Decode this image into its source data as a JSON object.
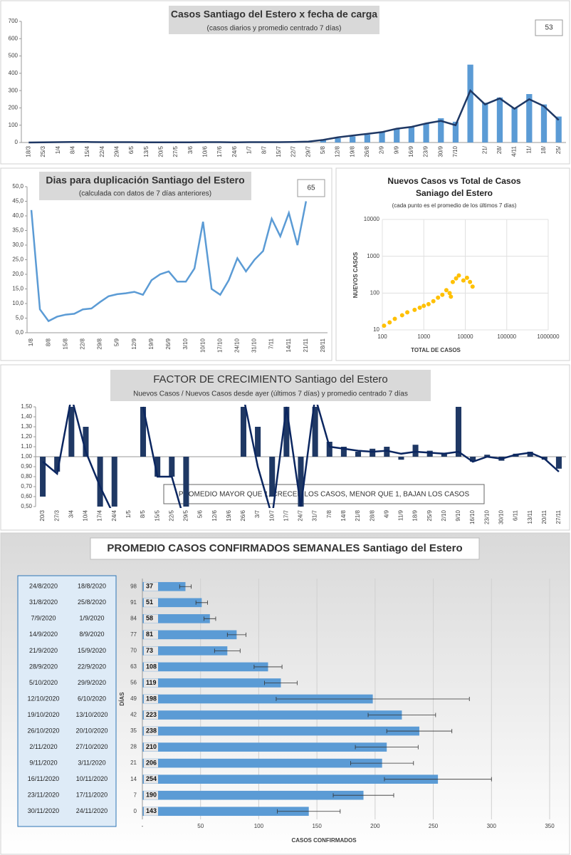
{
  "chart_data": [
    {
      "type": "bar-line",
      "title": "Casos Santiago del Estero x fecha de carga",
      "subtitle": "(casos diarios y promedio centrado 7 días)",
      "annotation": "53",
      "categories": [
        "18/3",
        "25/3",
        "1/4",
        "8/4",
        "15/4",
        "22/4",
        "29/4",
        "6/5",
        "13/5",
        "20/5",
        "27/5",
        "3/6",
        "10/6",
        "17/6",
        "24/6",
        "1/7",
        "8/7",
        "15/7",
        "22/7",
        "29/7",
        "5/8",
        "12/8",
        "19/8",
        "26/8",
        "2/9",
        "9/9",
        "16/9",
        "23/9",
        "30/9",
        "7/10",
        null,
        "21/",
        "28/",
        "4/11",
        "11/",
        "18/",
        "25/"
      ],
      "series": [
        {
          "name": "casos diarios",
          "color": "#5b9bd5",
          "values": [
            0,
            2,
            3,
            5,
            3,
            2,
            3,
            2,
            1,
            1,
            1,
            1,
            2,
            2,
            1,
            3,
            2,
            2,
            3,
            5,
            15,
            25,
            35,
            45,
            60,
            80,
            90,
            110,
            140,
            120,
            450,
            230,
            260,
            200,
            280,
            220,
            150
          ]
        },
        {
          "name": "promedio centrado 7 días",
          "color": "#1f3864",
          "values": [
            0,
            1,
            2,
            3,
            3,
            2,
            2,
            2,
            1,
            1,
            1,
            1,
            2,
            2,
            1,
            2,
            2,
            2,
            3,
            5,
            15,
            30,
            40,
            50,
            60,
            80,
            90,
            110,
            125,
            100,
            300,
            220,
            255,
            195,
            250,
            210,
            130
          ]
        }
      ],
      "ylim": [
        0,
        700
      ],
      "yticks": [
        0,
        100,
        200,
        300,
        400,
        500,
        600,
        700
      ]
    },
    {
      "type": "line",
      "title": "Dias para duplicación Santiago del Estero",
      "subtitle": "(calculada con datos de 7 días anteriores)",
      "annotation": "65",
      "color": "#5b9bd5",
      "categories": [
        "1/8",
        null,
        "8/8",
        null,
        "15/8",
        null,
        "22/8",
        null,
        "29/8",
        null,
        "5/9",
        null,
        "12/9",
        null,
        "19/9",
        null,
        "26/9",
        null,
        "3/10",
        null,
        "10/10",
        null,
        "17/10",
        null,
        "24/10",
        null,
        "31/10",
        null,
        "7/11",
        null,
        "14/11",
        null,
        "21/11",
        null,
        "28/11"
      ],
      "values": [
        42,
        8,
        4,
        5.5,
        6.2,
        6.5,
        8,
        8.3,
        10.5,
        12.5,
        13.2,
        13.5,
        14,
        13,
        18,
        20,
        21,
        17.5,
        17.5,
        22,
        38,
        15,
        13,
        18,
        25.5,
        21,
        25,
        28,
        39,
        33,
        41,
        30,
        45,
        null,
        null
      ],
      "ylim": [
        0,
        50
      ],
      "yticks": [
        {
          "value": 0,
          "label": "0,0"
        },
        {
          "value": 5,
          "label": "5,0"
        },
        {
          "value": 10,
          "label": "10,0"
        },
        {
          "value": 15,
          "label": "15,0"
        },
        {
          "value": 20,
          "label": "20,0"
        },
        {
          "value": 25,
          "label": "25,0"
        },
        {
          "value": 30,
          "label": "30,0"
        },
        {
          "value": 35,
          "label": "35,0"
        },
        {
          "value": 40,
          "label": "40,0"
        },
        {
          "value": 45,
          "label": "45,0"
        },
        {
          "value": 50,
          "label": "50,0"
        }
      ]
    },
    {
      "type": "scatter",
      "title": "Nuevos Casos vs Total de Casos Saniago del Estero",
      "subtitle": "(cada punto es el promedio de los últimos 7 días)",
      "xlabel": "TOTAL DE CASOS",
      "ylabel": "NUEVOS CASOS",
      "color": "#ffc000",
      "log_scale": true,
      "x": [
        110,
        150,
        200,
        300,
        400,
        600,
        800,
        1000,
        1300,
        1700,
        2200,
        2800,
        3500,
        4200,
        4500,
        5000,
        6000,
        7000,
        9000,
        11000,
        13000,
        15000
      ],
      "y": [
        13,
        16,
        20,
        25,
        30,
        35,
        40,
        45,
        50,
        60,
        75,
        90,
        120,
        100,
        80,
        200,
        250,
        300,
        220,
        260,
        200,
        150
      ],
      "xlim": [
        100,
        1000000
      ],
      "xticks": [
        100,
        1000,
        10000,
        100000,
        1000000
      ],
      "ylim": [
        10,
        10000
      ],
      "yticks": [
        10,
        100,
        1000,
        10000
      ]
    },
    {
      "type": "bar-line",
      "title": "FACTOR DE CRECIMIENTO Santiago del Estero",
      "subtitle": "Nuevos Casos  / Nuevos Casos desde ayer (últimos 7 días) y promedio  centrado 7 días",
      "annotation": "PROMEDIO MAYOR QUE 1, CRECEN LOS CASOS, MENOR QUE 1, BAJAN LOS CASOS",
      "baseline": 1,
      "categories": [
        "20/3",
        "27/3",
        "3/4",
        "10/4",
        "17/4",
        "24/4",
        "1/5",
        "8/5",
        "15/5",
        "22/5",
        "29/5",
        "5/6",
        "12/6",
        "19/6",
        "26/6",
        "3/7",
        "10/7",
        "17/7",
        "24/7",
        "31/7",
        "7/8",
        "14/8",
        "21/8",
        "28/8",
        "4/9",
        "11/9",
        "18/9",
        "25/9",
        "2/10",
        "9/10",
        "16/10",
        "23/10",
        "30/10",
        "6/11",
        "13/11",
        "20/11",
        "27/11"
      ],
      "series": [
        {
          "name": "factor diario",
          "color": "#1f3864",
          "values": [
            0.6,
            0.85,
            1.5,
            1.3,
            0.5,
            0.5,
            null,
            1.5,
            0.8,
            0.8,
            0.5,
            null,
            null,
            null,
            1.5,
            1.3,
            0.6,
            1.5,
            0.5,
            1.5,
            1.15,
            1.1,
            1.05,
            1.08,
            1.1,
            0.97,
            1.12,
            1.06,
            1.04,
            1.5,
            0.95,
            1.02,
            0.96,
            1.03,
            1.05,
            0.97,
            0.88
          ]
        },
        {
          "name": "promedio centrado 7 días",
          "color": "#0b2660",
          "values": [
            0.95,
            0.83,
            1.6,
            1.05,
            0.7,
            0.4,
            null,
            1.5,
            0.8,
            0.8,
            0.3,
            null,
            null,
            null,
            1.6,
            0.9,
            0.4,
            1.5,
            0.5,
            1.6,
            1.1,
            1.08,
            1.06,
            1.05,
            1.06,
            1.03,
            1.05,
            1.04,
            1.03,
            1.05,
            0.95,
            1.0,
            0.98,
            1.02,
            1.04,
            0.98,
            0.85
          ]
        }
      ],
      "ylim": [
        0.5,
        1.5
      ],
      "yticks": [
        {
          "value": 0.5,
          "label": "0,50"
        },
        {
          "value": 0.6,
          "label": "0,60"
        },
        {
          "value": 0.7,
          "label": "0,70"
        },
        {
          "value": 0.8,
          "label": "0,80"
        },
        {
          "value": 0.9,
          "label": "0,90"
        },
        {
          "value": 1,
          "label": "1,00"
        },
        {
          "value": 1.1,
          "label": "1,10"
        },
        {
          "value": 1.2,
          "label": "1,20"
        },
        {
          "value": 1.3,
          "label": "1,30"
        },
        {
          "value": 1.4,
          "label": "1,40"
        },
        {
          "value": 1.5,
          "label": "1,50"
        }
      ]
    },
    {
      "type": "hbar",
      "title": "PROMEDIO CASOS CONFIRMADOS SEMANALES Santiago del Estero",
      "xlabel": "CASOS CONFIRMADOS",
      "ylabel": "DÍAS",
      "color": "#5b9bd5",
      "dates": [
        [
          "24/8/2020",
          "18/8/2020"
        ],
        [
          "31/8/2020",
          "25/8/2020"
        ],
        [
          "7/9/2020",
          "1/9/2020"
        ],
        [
          "14/9/2020",
          "8/9/2020"
        ],
        [
          "21/9/2020",
          "15/9/2020"
        ],
        [
          "28/9/2020",
          "22/9/2020"
        ],
        [
          "5/10/2020",
          "29/9/2020"
        ],
        [
          "12/10/2020",
          "6/10/2020"
        ],
        [
          "19/10/2020",
          "13/10/2020"
        ],
        [
          "26/10/2020",
          "20/10/2020"
        ],
        [
          "2/11/2020",
          "27/10/2020"
        ],
        [
          "9/11/2020",
          "3/11/2020"
        ],
        [
          "16/11/2020",
          "10/11/2020"
        ],
        [
          "23/11/2020",
          "17/11/2020"
        ],
        [
          "30/11/2020",
          "24/11/2020"
        ]
      ],
      "categories": [
        98,
        91,
        84,
        77,
        70,
        63,
        56,
        49,
        42,
        35,
        28,
        21,
        14,
        7,
        0
      ],
      "values": [
        37,
        51,
        58,
        81,
        73,
        108,
        119,
        198,
        223,
        238,
        210,
        206,
        254,
        190,
        143
      ],
      "errors": [
        5,
        5,
        5,
        8,
        11,
        12,
        14,
        83,
        29,
        28,
        27,
        27,
        46,
        26,
        27
      ],
      "xlim": [
        0,
        350
      ],
      "xticks": [
        {
          "value": 0,
          "label": "-"
        },
        50,
        100,
        150,
        200,
        250,
        300,
        350
      ]
    }
  ]
}
